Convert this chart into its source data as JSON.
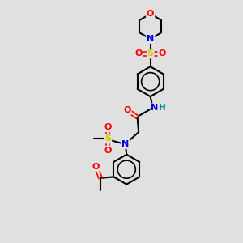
{
  "bg_color": "#e0e0e0",
  "atom_colors": {
    "C": "#000000",
    "N": "#0000ee",
    "O": "#ff0000",
    "S": "#cccc00",
    "H": "#008080"
  },
  "bond_color": "#000000",
  "bond_width": 1.5,
  "font_size": 7.5
}
